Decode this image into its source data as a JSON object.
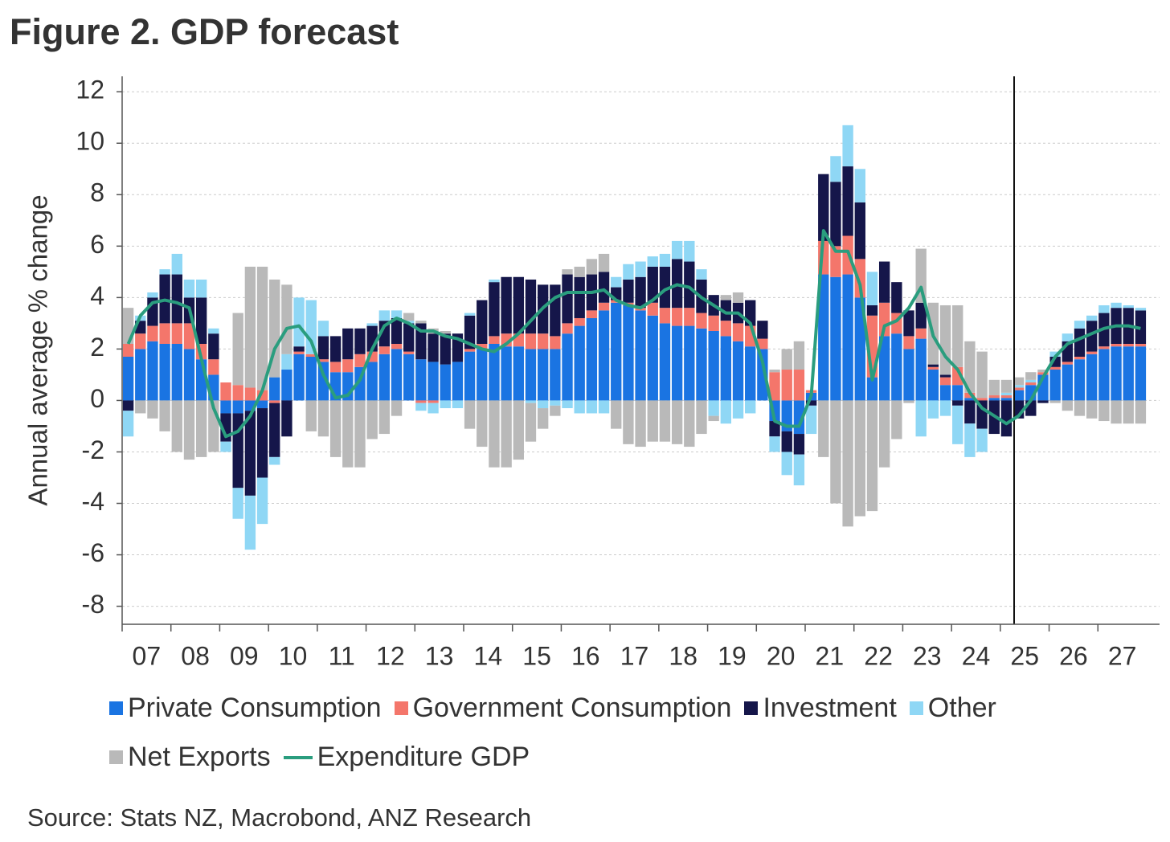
{
  "chart_data": {
    "type": "bar",
    "stacked": true,
    "title": "Figure 2.  GDP forecast",
    "y_label": "Annual average % change",
    "source": "Source: Stats NZ, Macrobond, ANZ Research",
    "categories": [
      "07",
      null,
      null,
      null,
      "08",
      null,
      null,
      null,
      "09",
      null,
      null,
      null,
      "10",
      null,
      null,
      null,
      "11",
      null,
      null,
      null,
      "12",
      null,
      null,
      null,
      "13",
      null,
      null,
      null,
      "14",
      null,
      null,
      null,
      "15",
      null,
      null,
      null,
      "16",
      null,
      null,
      null,
      "17",
      null,
      null,
      null,
      "18",
      null,
      null,
      null,
      "19",
      null,
      null,
      null,
      "20",
      null,
      null,
      null,
      "21",
      null,
      null,
      null,
      "22",
      null,
      null,
      null,
      "23",
      null,
      null,
      null,
      "24",
      null,
      null,
      null,
      "25",
      null,
      null,
      null,
      "26",
      null,
      null,
      null,
      "27",
      null,
      null,
      null
    ],
    "ylim": [
      -8.7,
      12.6
    ],
    "yticks": [
      -8,
      -6,
      -4,
      -2,
      0,
      2,
      4,
      6,
      8,
      10,
      12
    ],
    "grid": true,
    "series": [
      {
        "name": "Private Consumption",
        "color": "#1a74e2",
        "values": [
          1.7,
          2.0,
          2.3,
          2.2,
          2.2,
          2.0,
          1.6,
          1.0,
          -0.5,
          -0.5,
          -0.4,
          -0.3,
          0.9,
          1.2,
          1.8,
          1.7,
          1.5,
          1.1,
          1.1,
          1.3,
          1.5,
          1.8,
          2.0,
          1.8,
          1.6,
          1.5,
          1.4,
          1.5,
          1.9,
          2.0,
          2.2,
          2.1,
          2.1,
          2.0,
          2.0,
          2.0,
          2.6,
          2.9,
          3.2,
          3.5,
          3.8,
          3.7,
          3.5,
          3.3,
          3.0,
          2.9,
          2.9,
          2.8,
          2.7,
          2.5,
          2.3,
          2.1,
          2.0,
          -0.8,
          -1.2,
          -1.3,
          0.3,
          4.9,
          4.8,
          4.9,
          4.0,
          0.9,
          2.5,
          2.6,
          2.0,
          2.4,
          1.2,
          0.6,
          0.6,
          0.1,
          0,
          0.1,
          0.1,
          0.4,
          0.6,
          1.0,
          1.2,
          1.4,
          1.6,
          1.8,
          2.0,
          2.1,
          2.1,
          2.1
        ]
      },
      {
        "name": "Government Consumption",
        "color": "#f4766b",
        "values": [
          0.5,
          0.6,
          0.6,
          0.8,
          0.8,
          1.0,
          0.6,
          0.6,
          0.7,
          0.6,
          0.5,
          0.4,
          -0.1,
          0,
          0.1,
          0.1,
          0.1,
          0.4,
          0.5,
          0.5,
          0.4,
          0.3,
          0.2,
          0.1,
          -0.1,
          -0.1,
          0,
          0,
          0.1,
          0.2,
          0.3,
          0.5,
          0.5,
          0.6,
          0.6,
          0.5,
          0.4,
          0.3,
          0.3,
          0.3,
          0.1,
          0.1,
          0.1,
          0.5,
          0.6,
          0.7,
          0.7,
          0.6,
          0.6,
          0.6,
          0.7,
          0.8,
          0.4,
          1.1,
          1.2,
          1.2,
          0.1,
          1.3,
          1.2,
          1.5,
          1.5,
          2.4,
          1.3,
          0.8,
          0.5,
          0.4,
          0.1,
          0.3,
          0.7,
          0.2,
          0.1,
          0.1,
          0.1,
          0.1,
          0.1,
          0.1,
          0.1,
          0.1,
          0.1,
          0.1,
          0.1,
          0.1,
          0.1,
          0.1
        ]
      },
      {
        "name": "Investment",
        "color": "#15164a",
        "values": [
          -0.4,
          0.5,
          1.1,
          1.9,
          1.9,
          1.0,
          1.8,
          1.0,
          -1.1,
          -2.9,
          -3.3,
          -2.7,
          -2.1,
          -1.4,
          0.2,
          0,
          0.9,
          1.0,
          1.2,
          1.0,
          1.0,
          1.0,
          1.0,
          1.1,
          1.4,
          1.1,
          1.2,
          1.1,
          1.3,
          1.7,
          2.1,
          2.2,
          2.2,
          2.1,
          1.9,
          2.0,
          1.9,
          1.6,
          1.4,
          1.2,
          0.5,
          0.9,
          1.2,
          1.4,
          1.6,
          1.9,
          1.8,
          1.3,
          0.8,
          0.8,
          0.8,
          1.0,
          0.7,
          -0.6,
          -0.8,
          -0.8,
          -0.2,
          2.6,
          2.5,
          2.7,
          2.2,
          0.4,
          1.6,
          1.2,
          1.0,
          1.0,
          0.1,
          0.1,
          -0.2,
          -0.9,
          -1.1,
          -1.3,
          -1.4,
          -0.7,
          -0.6,
          -0.1,
          0.4,
          0.8,
          1.1,
          1.2,
          1.3,
          1.4,
          1.4,
          1.3
        ]
      },
      {
        "name": "Other",
        "color": "#8fd7f5",
        "values": [
          -1.0,
          0.2,
          0.2,
          0.2,
          0.8,
          0.7,
          0.7,
          0.2,
          -0.4,
          -1.2,
          -2.1,
          -1.8,
          -0.3,
          0.6,
          1.9,
          2.1,
          0.6,
          0,
          0,
          0,
          0.1,
          0.4,
          0.3,
          0.1,
          -0.3,
          -0.4,
          -0.3,
          -0.3,
          0.1,
          0,
          0.1,
          0,
          0,
          -0.1,
          -0.3,
          -0.2,
          -0.3,
          -0.5,
          -0.5,
          -0.5,
          0.4,
          0.6,
          0.6,
          0.4,
          0.5,
          0.7,
          0.8,
          0.4,
          -0.6,
          -0.9,
          -0.7,
          -0.5,
          0,
          -0.6,
          -0.9,
          -1.2,
          -1.1,
          0,
          1.0,
          1.6,
          1.3,
          1.3,
          0,
          0,
          0,
          -1.4,
          -0.7,
          -0.6,
          -1.5,
          -1.3,
          -0.9,
          0,
          0.1,
          0.1,
          0.1,
          0,
          0.2,
          0.3,
          0.3,
          0.2,
          0.3,
          0.2,
          0.1,
          0.1
        ]
      },
      {
        "name": "Net Exports",
        "color": "#b9b9b9",
        "values": [
          1.4,
          -0.5,
          -0.7,
          -1.2,
          -2.0,
          -2.3,
          -2.2,
          -2.0,
          0,
          2.8,
          4.7,
          4.8,
          3.8,
          2.7,
          0,
          -1.2,
          -1.4,
          -2.2,
          -2.6,
          -2.6,
          -1.5,
          -1.3,
          -0.6,
          0.3,
          0.1,
          0.2,
          0.1,
          0,
          -1.1,
          -1.8,
          -2.6,
          -2.6,
          -2.3,
          -1.5,
          -0.8,
          -0.4,
          0.2,
          0.4,
          0.6,
          0.7,
          -1.1,
          -1.7,
          -1.8,
          -1.6,
          -1.6,
          -1.7,
          -1.8,
          -1.3,
          -0.2,
          0.2,
          0.4,
          0,
          0,
          0.1,
          0.8,
          1.1,
          0,
          -2.2,
          -4.0,
          -4.9,
          -4.5,
          -4.3,
          -2.6,
          -1.5,
          -0.1,
          2.1,
          2.4,
          2.7,
          2.4,
          2.0,
          1.8,
          0.6,
          0.5,
          0.3,
          0.3,
          0.1,
          -0.1,
          -0.4,
          -0.6,
          -0.7,
          -0.8,
          -0.9,
          -0.9,
          -0.9
        ]
      },
      {
        "name": "Expenditure GDP",
        "color": "#2a9d7e",
        "type": "line",
        "values": [
          2.2,
          3.3,
          3.8,
          3.9,
          3.8,
          3.6,
          1.6,
          -0.3,
          -1.4,
          -1.2,
          -0.6,
          0.4,
          2.0,
          2.8,
          2.9,
          2.3,
          1.0,
          0.1,
          0.2,
          0.8,
          2.0,
          2.9,
          3.2,
          3.0,
          2.7,
          2.7,
          2.5,
          2.4,
          2.2,
          2.0,
          1.9,
          2.2,
          2.6,
          3.1,
          3.6,
          4.0,
          4.2,
          4.2,
          4.2,
          4.3,
          3.9,
          3.7,
          3.6,
          3.9,
          4.3,
          4.5,
          4.4,
          4.0,
          3.7,
          3.4,
          3.4,
          3.0,
          1.5,
          -0.8,
          -1.0,
          -1.0,
          0.2,
          6.6,
          5.8,
          5.8,
          4.5,
          0.8,
          2.9,
          3.1,
          3.6,
          4.4,
          2.5,
          1.7,
          1.2,
          0.3,
          -0.3,
          -0.6,
          -0.9,
          -0.6,
          0,
          0.9,
          1.7,
          2.2,
          2.4,
          2.6,
          2.8,
          2.9,
          2.9,
          2.8
        ]
      }
    ]
  }
}
